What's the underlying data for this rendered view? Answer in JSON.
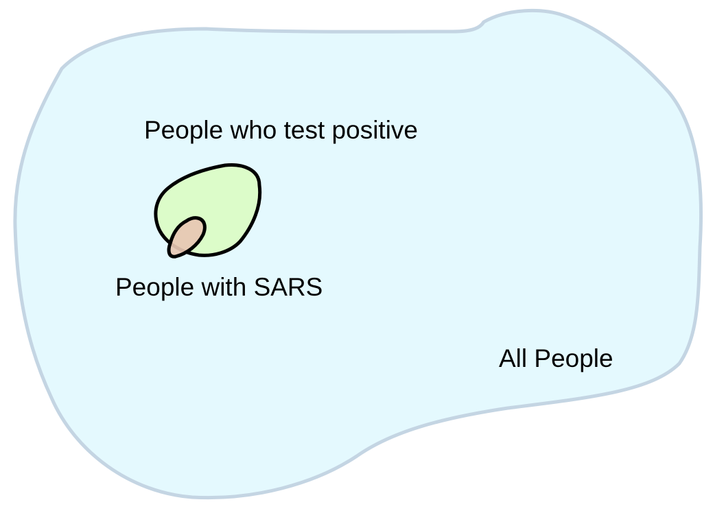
{
  "diagram": {
    "labels": {
      "all_people": "All People",
      "test_positive": "People who test positive",
      "with_sars": "People with SARS"
    },
    "colors": {
      "all_people_fill": "#e4f9fe",
      "all_people_stroke": "#c4d5e3",
      "test_positive_fill": "#dcfcc9",
      "with_sars_fill": "#e7c7b3",
      "blob_stroke": "#000000"
    }
  }
}
